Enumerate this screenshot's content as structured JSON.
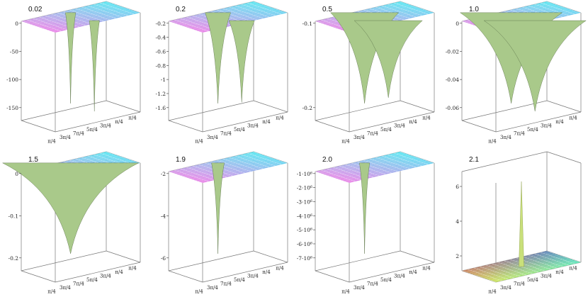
{
  "chart_data": [
    {
      "type": "surface",
      "title": "0.02",
      "z_ticks": [
        "0",
        "-50",
        "-100",
        "-150"
      ],
      "x_ticks": [
        "π/4",
        "3π/4",
        "7π/4",
        "5π/4",
        "3π/4",
        "π/4",
        "π/4"
      ],
      "z_range": [
        -180,
        0
      ],
      "wells": [
        {
          "x": 0.52,
          "y": 0.15,
          "depth": 1.0,
          "width": 0.012
        },
        {
          "x": 0.52,
          "y": 0.85,
          "depth": 1.0,
          "width": 0.012
        }
      ],
      "peak": false
    },
    {
      "type": "surface",
      "title": "0.2",
      "z_ticks": [
        "-0.2",
        "-0.4",
        "-0.6",
        "-0.8",
        "-1",
        "-1.2",
        "-1.6"
      ],
      "x_ticks": [
        "π/4",
        "3π/4",
        "7π/4",
        "5π/4",
        "3π/4",
        "π/4",
        "π/4"
      ],
      "z_range": [
        -2.0,
        0
      ],
      "wells": [
        {
          "x": 0.52,
          "y": 0.15,
          "depth": 1.0,
          "width": 0.03
        },
        {
          "x": 0.52,
          "y": 0.85,
          "depth": 0.9,
          "width": 0.03
        }
      ],
      "peak": false
    },
    {
      "type": "surface",
      "title": "0.5",
      "z_ticks": [
        "-0.1",
        "-0.2"
      ],
      "x_ticks": [
        "π/4",
        "3π/4",
        "7π/4",
        "5π/4",
        "3π/4",
        "π/4",
        "π/4"
      ],
      "z_range": [
        -0.3,
        0
      ],
      "wells": [
        {
          "x": 0.52,
          "y": 0.15,
          "depth": 1.0,
          "width": 0.08
        },
        {
          "x": 0.52,
          "y": 0.85,
          "depth": 0.85,
          "width": 0.08
        }
      ],
      "peak": false
    },
    {
      "type": "surface",
      "title": "1.0",
      "z_ticks": [
        "0",
        "-0.02",
        "-0.04",
        "-0.06"
      ],
      "x_ticks": [
        "π/4",
        "3π/4",
        "7π/4",
        "5π/4",
        "3π/4",
        "π/4",
        "π/4"
      ],
      "z_range": [
        -0.08,
        0
      ],
      "wells": [
        {
          "x": 0.52,
          "y": 0.15,
          "depth": 1.0,
          "width": 0.12
        },
        {
          "x": 0.52,
          "y": 0.85,
          "depth": 1.0,
          "width": 0.12
        }
      ],
      "peak": false
    },
    {
      "type": "surface",
      "title": "1.5",
      "z_ticks": [
        "0",
        "-0.1",
        "-0.2"
      ],
      "x_ticks": [
        "π/4",
        "3π/4",
        "7π/4",
        "5π/4",
        "3π/4",
        "π/4",
        "π/4"
      ],
      "z_range": [
        -0.3,
        0
      ],
      "wells": [
        {
          "x": 0.52,
          "y": 0.15,
          "depth": 1.0,
          "width": 0.16
        }
      ],
      "peak": false
    },
    {
      "type": "surface",
      "title": "1.9",
      "z_ticks": [
        "-2",
        "-4",
        "-6"
      ],
      "x_ticks": [
        "π/4",
        "3π/4",
        "7π/4",
        "5π/4",
        "3π/4",
        "π/4",
        "π/4"
      ],
      "z_range": [
        -8,
        0
      ],
      "wells": [
        {
          "x": 0.52,
          "y": 0.15,
          "depth": 1.0,
          "width": 0.015
        }
      ],
      "peak": false
    },
    {
      "type": "surface",
      "title": "2.0",
      "z_ticks": [
        "-1·10⁶",
        "-2·10⁶",
        "-3·10⁶",
        "-4·10⁶",
        "-5·10⁶",
        "-6·10⁶",
        "-7·10⁶"
      ],
      "x_ticks": [
        "π/4",
        "3π/4",
        "7π/4",
        "5π/4",
        "3π/4",
        "π/4",
        "π/4"
      ],
      "z_range": [
        -8000000,
        0
      ],
      "wells": [
        {
          "x": 0.52,
          "y": 0.15,
          "depth": 1.0,
          "width": 0.012
        }
      ],
      "peak": false
    },
    {
      "type": "surface",
      "title": "2.1",
      "z_ticks": [
        "6",
        "4",
        "2"
      ],
      "x_ticks": [
        "π/4",
        "3π/4",
        "7π/4",
        "5π/4",
        "3π/4",
        "π/4",
        "π/4"
      ],
      "z_range": [
        0,
        8
      ],
      "wells": [
        {
          "x": 0.5,
          "y": 0.5,
          "depth": 1.0,
          "width": 0.012
        }
      ],
      "peak": true
    }
  ]
}
